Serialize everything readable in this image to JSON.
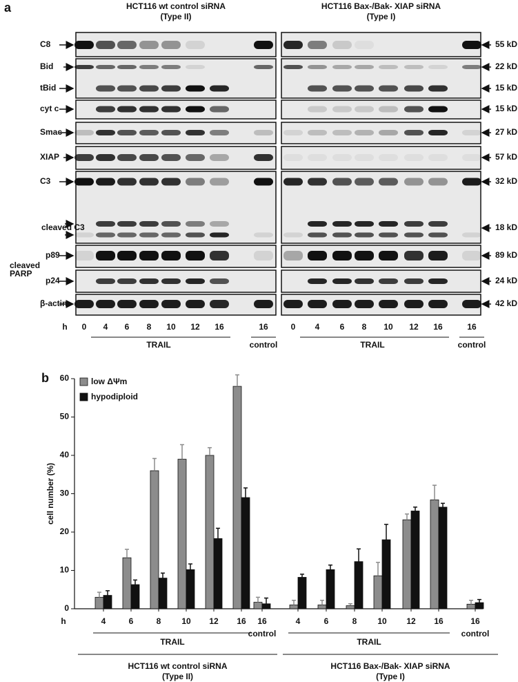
{
  "panel_a": {
    "label": "a",
    "groups": [
      {
        "title": [
          "HCT116 wt control siRNA",
          "(Type II)"
        ],
        "lanes": [
          "0",
          "4",
          "6",
          "8",
          "10",
          "12",
          "16",
          "16"
        ],
        "treatment": "TRAIL",
        "control": "control"
      },
      {
        "title": [
          "HCT116 Bax-/Bak- XIAP siRNA",
          "(Type I)"
        ],
        "lanes": [
          "0",
          "4",
          "6",
          "8",
          "10",
          "12",
          "16",
          "16"
        ],
        "treatment": "TRAIL",
        "control": "control"
      }
    ],
    "time_unit": "h",
    "rows": [
      {
        "label": "C8",
        "size": "55 kD"
      },
      {
        "label": "Bid",
        "size": "22 kD"
      },
      {
        "label": "tBid",
        "size": "15 kD"
      },
      {
        "label": "cyt c",
        "size": "15 kD"
      },
      {
        "label": "Smac",
        "size": "27 kD"
      },
      {
        "label": "XIAP",
        "size": "57 kD"
      },
      {
        "label": "C3",
        "size": "32 kD"
      },
      {
        "label": "cleaved C3",
        "size": "18 kD"
      },
      {
        "label": "p89",
        "size": "89 kD"
      },
      {
        "label": "p24",
        "size": "24 kD"
      },
      {
        "label": "β-actin",
        "size": "42 kD"
      }
    ],
    "parp_label": [
      "cleaved",
      "PARP"
    ]
  },
  "chart_data": {
    "type": "bar",
    "label": "b",
    "y_label": "cell number (%)",
    "x_unit": "h",
    "categories": [
      "4",
      "6",
      "8",
      "10",
      "12",
      "16",
      "16",
      "4",
      "6",
      "8",
      "10",
      "12",
      "16",
      "16"
    ],
    "series": [
      {
        "name": "low ΔΨm",
        "color": "#8c8c8c",
        "values": [
          3,
          13.3,
          36,
          39,
          40,
          58,
          1.7,
          1,
          1,
          0.8,
          8.6,
          23.2,
          28.4,
          1.2
        ],
        "error": [
          1.3,
          2.2,
          3.2,
          3.8,
          2,
          3,
          1.3,
          1.2,
          1.2,
          0.5,
          3.5,
          1.5,
          3.8,
          1
        ]
      },
      {
        "name": "hypodiploid",
        "color": "#111111",
        "values": [
          3.5,
          6.3,
          8,
          10.2,
          18.3,
          29,
          1.3,
          8.2,
          10.2,
          12.3,
          18,
          25.5,
          26.5,
          1.6
        ],
        "error": [
          1.2,
          1.2,
          1.3,
          1.5,
          2.7,
          2.5,
          1.5,
          0.8,
          1.2,
          3.3,
          4,
          1,
          1,
          0.8
        ]
      }
    ],
    "ylim": [
      0,
      60
    ],
    "yticks": [
      0,
      10,
      20,
      30,
      40,
      50,
      60
    ],
    "groups": [
      {
        "title": [
          "HCT116 wt control siRNA",
          "(Type II)"
        ],
        "treatment": "TRAIL",
        "control": "control"
      },
      {
        "title": [
          "HCT116 Bax-/Bak- XIAP siRNA",
          "(Type I)"
        ],
        "treatment": "TRAIL",
        "control": "control"
      }
    ]
  }
}
